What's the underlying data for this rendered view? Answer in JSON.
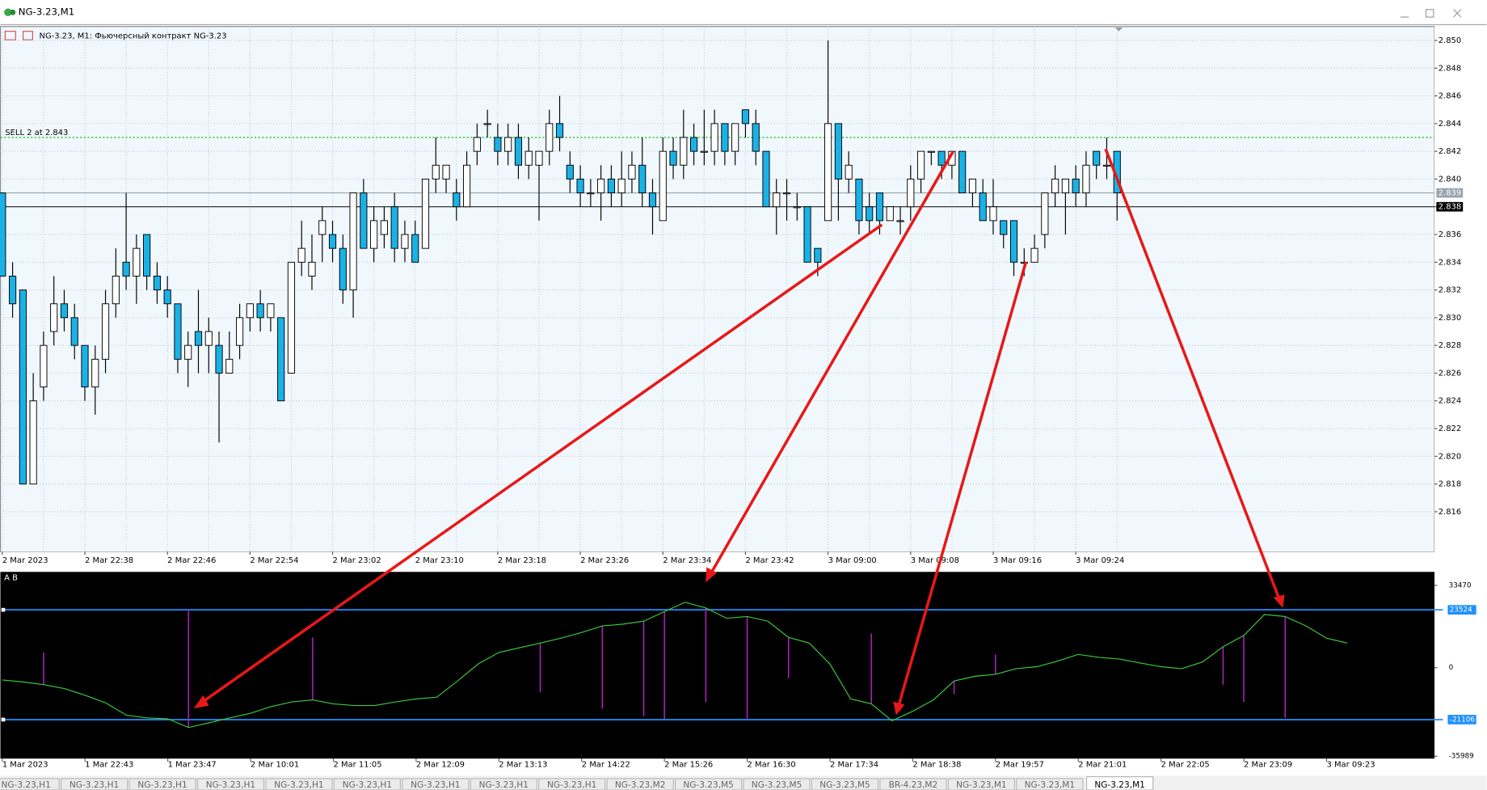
{
  "window": {
    "title": "NG-3.23,M1"
  },
  "tabs": [
    "NG-3.23,H1",
    "NG-3.23,H1",
    "NG-3.23,H1",
    "NG-3.23,H1",
    "NG-3.23,H1",
    "NG-3.23,H1",
    "NG-3.23,H1",
    "NG-3.23,H1",
    "NG-3.23,H1",
    "NG-3.23,M2",
    "NG-3.23,M5",
    "NG-3.23,M5",
    "NG-3.23,M5",
    "BR-4.23,M2",
    "NG-3.23,M1",
    "NG-3.23,M1",
    "NG-3.23,M1"
  ],
  "active_tab": 16,
  "chart_data": [
    {
      "type": "candlestick",
      "title": "NG-3.23, M1:  Фьючерсный контракт NG-3.23",
      "categories": [
        "2 Mar 2023",
        null,
        null,
        null,
        null,
        null,
        null,
        null,
        "2 Mar 22:38",
        null,
        null,
        null,
        null,
        null,
        null,
        null,
        "2 Mar 22:46",
        null,
        null,
        null,
        null,
        null,
        null,
        null,
        "2 Mar 22:54",
        null,
        null,
        null,
        null,
        null,
        null,
        null,
        "2 Mar 23:02",
        null,
        null,
        null,
        null,
        null,
        null,
        null,
        "2 Mar 23:10",
        null,
        null,
        null,
        null,
        null,
        null,
        null,
        "2 Mar 23:18",
        null,
        null,
        null,
        null,
        null,
        null,
        null,
        "2 Mar 23:26",
        null,
        null,
        null,
        null,
        null,
        null,
        null,
        "2 Mar 23:34",
        null,
        null,
        null,
        null,
        null,
        null,
        null,
        "2 Mar 23:42",
        null,
        null,
        null,
        null,
        null,
        null,
        null,
        "3 Mar 09:00",
        null,
        null,
        null,
        null,
        null,
        null,
        null,
        "3 Mar 09:08",
        null,
        null,
        null,
        null,
        null,
        null,
        null,
        "3 Mar 09:16",
        null,
        null,
        null,
        null,
        null,
        null,
        null,
        "3 Mar 09:24",
        null,
        null,
        null,
        null
      ],
      "open": [
        2.839,
        2.833,
        2.832,
        2.818,
        2.825,
        2.829,
        2.831,
        2.83,
        2.828,
        2.825,
        2.827,
        2.831,
        2.834,
        2.833,
        2.836,
        2.833,
        2.832,
        2.831,
        2.827,
        2.829,
        2.828,
        2.828,
        2.826,
        2.828,
        2.83,
        2.831,
        2.83,
        2.83,
        2.826,
        2.834,
        2.833,
        2.836,
        2.836,
        2.835,
        2.832,
        2.839,
        2.835,
        2.836,
        2.838,
        2.835,
        2.836,
        2.835,
        2.84,
        2.84,
        2.839,
        2.838,
        2.842,
        2.844,
        2.843,
        2.842,
        2.843,
        2.841,
        2.841,
        2.842,
        2.844,
        2.841,
        2.84,
        2.839,
        2.839,
        2.84,
        2.839,
        2.84,
        2.841,
        2.839,
        2.837,
        2.842,
        2.841,
        2.843,
        2.842,
        2.842,
        2.844,
        2.842,
        2.845,
        2.844,
        2.842,
        2.838,
        2.839,
        2.838,
        2.838,
        2.835,
        2.837,
        2.844,
        2.84,
        2.84,
        2.838,
        2.839,
        2.837,
        2.837,
        2.838,
        2.84,
        2.842,
        2.842,
        2.841,
        2.842,
        2.839,
        2.839,
        2.837,
        2.837,
        2.837,
        2.834,
        2.834,
        2.836,
        2.839,
        2.839,
        2.84,
        2.839,
        2.842,
        2.841,
        2.842
      ],
      "high": [
        2.839,
        2.834,
        2.832,
        2.826,
        2.829,
        2.833,
        2.832,
        2.831,
        2.828,
        2.828,
        2.832,
        2.835,
        2.839,
        2.836,
        2.836,
        2.834,
        2.833,
        2.831,
        2.829,
        2.832,
        2.83,
        2.829,
        2.829,
        2.831,
        2.831,
        2.832,
        2.831,
        2.83,
        2.834,
        2.837,
        2.836,
        2.838,
        2.837,
        2.836,
        2.839,
        2.84,
        2.838,
        2.838,
        2.839,
        2.837,
        2.837,
        2.84,
        2.843,
        2.841,
        2.84,
        2.842,
        2.844,
        2.845,
        2.844,
        2.844,
        2.844,
        2.843,
        2.842,
        2.845,
        2.846,
        2.842,
        2.841,
        2.84,
        2.841,
        2.841,
        2.842,
        2.842,
        2.843,
        2.84,
        2.843,
        2.843,
        2.845,
        2.844,
        2.845,
        2.845,
        2.844,
        2.844,
        2.845,
        2.845,
        2.842,
        2.84,
        2.84,
        2.839,
        2.838,
        2.835,
        2.85,
        2.844,
        2.842,
        2.84,
        2.839,
        2.839,
        2.838,
        2.838,
        2.841,
        2.842,
        2.842,
        2.842,
        2.842,
        2.842,
        2.84,
        2.84,
        2.84,
        2.837,
        2.837,
        2.835,
        2.836,
        2.839,
        2.841,
        2.84,
        2.841,
        2.842,
        2.842,
        2.843,
        2.842
      ],
      "low": [
        2.833,
        2.83,
        2.818,
        2.818,
        2.824,
        2.828,
        2.829,
        2.827,
        2.824,
        2.823,
        2.826,
        2.83,
        2.832,
        2.831,
        2.832,
        2.831,
        2.83,
        2.826,
        2.825,
        2.826,
        2.826,
        2.821,
        2.826,
        2.827,
        2.829,
        2.829,
        2.829,
        2.824,
        2.826,
        2.833,
        2.832,
        2.834,
        2.834,
        2.831,
        2.83,
        2.835,
        2.834,
        2.835,
        2.834,
        2.834,
        2.834,
        2.835,
        2.839,
        2.839,
        2.837,
        2.838,
        2.841,
        2.843,
        2.841,
        2.841,
        2.84,
        2.84,
        2.837,
        2.841,
        2.842,
        2.839,
        2.838,
        2.838,
        2.837,
        2.838,
        2.838,
        2.839,
        2.838,
        2.836,
        2.837,
        2.84,
        2.84,
        2.841,
        2.841,
        2.841,
        2.841,
        2.841,
        2.843,
        2.841,
        2.838,
        2.836,
        2.837,
        2.837,
        2.834,
        2.833,
        2.837,
        2.837,
        2.839,
        2.836,
        2.836,
        2.836,
        2.837,
        2.836,
        2.837,
        2.839,
        2.841,
        2.84,
        2.84,
        2.839,
        2.838,
        2.837,
        2.836,
        2.835,
        2.833,
        2.833,
        2.834,
        2.835,
        2.838,
        2.836,
        2.838,
        2.838,
        2.84,
        2.84,
        2.837
      ],
      "close": [
        2.833,
        2.831,
        2.818,
        2.824,
        2.828,
        2.831,
        2.83,
        2.828,
        2.825,
        2.827,
        2.831,
        2.833,
        2.833,
        2.835,
        2.833,
        2.832,
        2.831,
        2.827,
        2.828,
        2.828,
        2.829,
        2.826,
        2.827,
        2.83,
        2.831,
        2.83,
        2.831,
        2.824,
        2.834,
        2.835,
        2.834,
        2.837,
        2.835,
        2.832,
        2.839,
        2.835,
        2.837,
        2.837,
        2.835,
        2.836,
        2.834,
        2.84,
        2.841,
        2.841,
        2.838,
        2.841,
        2.843,
        2.844,
        2.842,
        2.843,
        2.841,
        2.842,
        2.842,
        2.844,
        2.843,
        2.84,
        2.839,
        2.839,
        2.84,
        2.839,
        2.84,
        2.841,
        2.839,
        2.838,
        2.842,
        2.841,
        2.843,
        2.842,
        2.842,
        2.844,
        2.842,
        2.844,
        2.844,
        2.842,
        2.838,
        2.839,
        2.839,
        2.838,
        2.834,
        2.834,
        2.844,
        2.84,
        2.841,
        2.837,
        2.837,
        2.837,
        2.838,
        2.837,
        2.84,
        2.842,
        2.842,
        2.841,
        2.842,
        2.839,
        2.84,
        2.837,
        2.838,
        2.836,
        2.834,
        2.834,
        2.835,
        2.839,
        2.84,
        2.84,
        2.839,
        2.841,
        2.841,
        2.841,
        2.839
      ],
      "up_color": "#ffffff",
      "down_color": "#1ab2e6",
      "ylim": [
        2.8131,
        2.851
      ],
      "yticks": [
        2.816,
        2.818,
        {
          "value": 2.82,
          "label": "2.820"
        },
        2.822,
        2.824,
        2.826,
        2.828,
        {
          "value": 2.83,
          "label": "2.830"
        },
        2.832,
        2.834,
        2.836,
        2.838,
        {
          "value": 2.84,
          "label": "2.840"
        },
        2.842,
        2.844,
        2.846,
        2.848,
        {
          "value": 2.85,
          "label": "2.850"
        }
      ],
      "grid": true,
      "ask": 2.839,
      "bid": 2.838,
      "order_line": {
        "label": "SELL 2 at 2.843",
        "value": 2.843,
        "color": "#22bb22"
      }
    },
    {
      "type": "line",
      "title": "A B",
      "categories": [
        "1 Mar 2023",
        null,
        null,
        null,
        "1 Mar 22:43",
        null,
        null,
        null,
        "1 Mar 23:47",
        null,
        null,
        null,
        "2 Mar 10:01",
        null,
        null,
        null,
        "2 Mar 11:05",
        null,
        null,
        null,
        "2 Mar 12:09",
        null,
        null,
        null,
        "2 Mar 13:13",
        null,
        null,
        null,
        "2 Mar 14:22",
        null,
        null,
        null,
        "2 Mar 15:26",
        null,
        null,
        null,
        "2 Mar 16:30",
        null,
        null,
        null,
        "2 Mar 17:34",
        null,
        null,
        null,
        "2 Mar 18:38",
        null,
        null,
        null,
        "2 Mar 19:57",
        null,
        null,
        null,
        "2 Mar 21:01",
        null,
        null,
        null,
        "2 Mar 22:05",
        null,
        null,
        null,
        "2 Mar 23:09",
        null,
        null,
        null,
        "3 Mar 09:23",
        null
      ],
      "values": [
        -5000,
        -5800,
        -6900,
        -8500,
        -11200,
        -14300,
        -19300,
        -20400,
        -20800,
        -24300,
        -22400,
        -20400,
        -18500,
        -15800,
        -13900,
        -13100,
        -14700,
        -15400,
        -15400,
        -13900,
        -12700,
        -12000,
        -5400,
        1500,
        6200,
        8100,
        10000,
        12000,
        14300,
        17000,
        17700,
        18900,
        22800,
        26600,
        24300,
        20100,
        20800,
        18900,
        12300,
        10000,
        1500,
        -12700,
        -14700,
        -21600,
        -17700,
        -13100,
        -5400,
        -3500,
        -2700,
        -400,
        400,
        2700,
        5400,
        4200,
        3500,
        1900,
        400,
        -400,
        2300,
        8500,
        13100,
        21600,
        20800,
        17000,
        12000,
        10000
      ],
      "color": "#3cc83c",
      "spikes": [
        null,
        null,
        6200,
        null,
        null,
        null,
        null,
        null,
        null,
        23500,
        null,
        null,
        null,
        null,
        null,
        12300,
        null,
        null,
        null,
        null,
        null,
        null,
        null,
        null,
        null,
        null,
        -10000,
        null,
        null,
        -16600,
        null,
        -19700,
        -20800,
        null,
        -13900,
        null,
        -20800,
        null,
        -4200,
        null,
        null,
        null,
        13900,
        null,
        null,
        null,
        -10800,
        null,
        5400,
        null,
        null,
        null,
        null,
        null,
        null,
        null,
        null,
        null,
        null,
        -6900,
        -13900,
        null,
        -20400,
        null,
        null,
        null
      ],
      "spike_color": "#b020c0",
      "levels": [
        23524,
        -21106
      ],
      "level_color": "#1e90ff",
      "ylim": [
        -37000,
        38950
      ],
      "yticks": [
        33470,
        0,
        -35989
      ]
    }
  ]
}
